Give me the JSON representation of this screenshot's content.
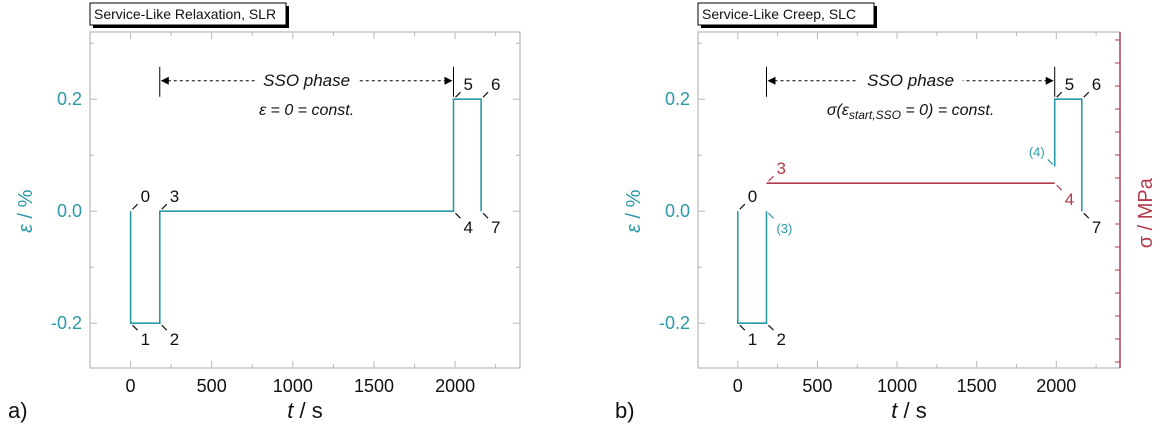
{
  "colors": {
    "strain": "#2a9aa6",
    "stress": "#b23a4a",
    "frame": "#b8b8b8",
    "text": "#111111",
    "title_shadow": "#000000"
  },
  "chart_data": [
    {
      "type": "line",
      "panel_label": "a)",
      "title": "Service-Like Relaxation, SLR",
      "xlabel_var": "t",
      "xlabel_unit": " / s",
      "ylabel_var": "ε",
      "ylabel_unit": " / %",
      "xlim": [
        -250,
        2400
      ],
      "ylim": [
        -0.28,
        0.32
      ],
      "xticks": [
        0,
        500,
        1000,
        1500,
        2000
      ],
      "yticks": [
        0.2,
        0.0,
        -0.2
      ],
      "ytick_labels": [
        "0.2",
        "0.0",
        "-0.2"
      ],
      "series": [
        {
          "color_key": "strain",
          "x": [
            0,
            0,
            180,
            180,
            1990,
            1990,
            2160,
            2160
          ],
          "y": [
            0.0,
            -0.2,
            -0.2,
            0.0,
            0.0,
            0.2,
            0.2,
            0.0
          ]
        }
      ],
      "point_labels": [
        {
          "text": "0",
          "x": 0,
          "y": 0.0,
          "pos": "up-right"
        },
        {
          "text": "1",
          "x": 0,
          "y": -0.2,
          "pos": "down-right"
        },
        {
          "text": "2",
          "x": 180,
          "y": -0.2,
          "pos": "down-right"
        },
        {
          "text": "3",
          "x": 180,
          "y": 0.0,
          "pos": "up-right"
        },
        {
          "text": "4",
          "x": 1990,
          "y": 0.0,
          "pos": "down-right"
        },
        {
          "text": "5",
          "x": 1990,
          "y": 0.2,
          "pos": "up-right"
        },
        {
          "text": "6",
          "x": 2160,
          "y": 0.2,
          "pos": "up-right"
        },
        {
          "text": "7",
          "x": 2160,
          "y": 0.0,
          "pos": "down-right"
        }
      ],
      "phase": {
        "label": "SSO phase",
        "condition": "ε = 0 = const.",
        "x_start": 180,
        "x_end": 1990,
        "y": 0.215
      }
    },
    {
      "type": "line",
      "panel_label": "b)",
      "title": "Service-Like Creep, SLC",
      "xlabel_var": "t",
      "xlabel_unit": " / s",
      "ylabel_var": "ε",
      "ylabel_unit": " / %",
      "y2label": "σ / MPa",
      "xlim": [
        -250,
        2400
      ],
      "ylim": [
        -0.28,
        0.32
      ],
      "xticks": [
        0,
        500,
        1000,
        1500,
        2000
      ],
      "yticks": [
        0.2,
        0.0,
        -0.2
      ],
      "ytick_labels": [
        "0.2",
        "0.0",
        "-0.2"
      ],
      "series": [
        {
          "color_key": "strain",
          "x": [
            0,
            0,
            180,
            180
          ],
          "y": [
            0.0,
            -0.2,
            -0.2,
            0.0
          ]
        },
        {
          "color_key": "strain",
          "x": [
            1990,
            1990,
            2160,
            2160
          ],
          "y": [
            0.08,
            0.2,
            0.2,
            0.0
          ]
        },
        {
          "color_key": "stress",
          "x": [
            180,
            1990
          ],
          "y": [
            0.05,
            0.05
          ]
        }
      ],
      "point_labels": [
        {
          "text": "0",
          "x": 0,
          "y": 0.0,
          "pos": "up-right",
          "color_key": "text"
        },
        {
          "text": "1",
          "x": 0,
          "y": -0.2,
          "pos": "down-right",
          "color_key": "text"
        },
        {
          "text": "2",
          "x": 180,
          "y": -0.2,
          "pos": "down-right",
          "color_key": "text"
        },
        {
          "text": "3",
          "x": 180,
          "y": 0.05,
          "pos": "up-right",
          "color_key": "stress"
        },
        {
          "text": "(3)",
          "x": 180,
          "y": 0.0,
          "pos": "down-right",
          "color_key": "strain"
        },
        {
          "text": "4",
          "x": 1990,
          "y": 0.05,
          "pos": "down-right",
          "color_key": "stress"
        },
        {
          "text": "(4)",
          "x": 1990,
          "y": 0.08,
          "pos": "up-left",
          "color_key": "strain"
        },
        {
          "text": "5",
          "x": 1990,
          "y": 0.2,
          "pos": "up-right",
          "color_key": "text"
        },
        {
          "text": "6",
          "x": 2160,
          "y": 0.2,
          "pos": "up-right",
          "color_key": "text"
        },
        {
          "text": "7",
          "x": 2160,
          "y": 0.0,
          "pos": "down-right",
          "color_key": "text"
        }
      ],
      "phase": {
        "label": "SSO phase",
        "condition_prefix": "σ(ε",
        "condition_sub": "start,SSO",
        "condition_suffix": " = 0) = const.",
        "x_start": 180,
        "x_end": 1990,
        "y": 0.215
      }
    }
  ]
}
